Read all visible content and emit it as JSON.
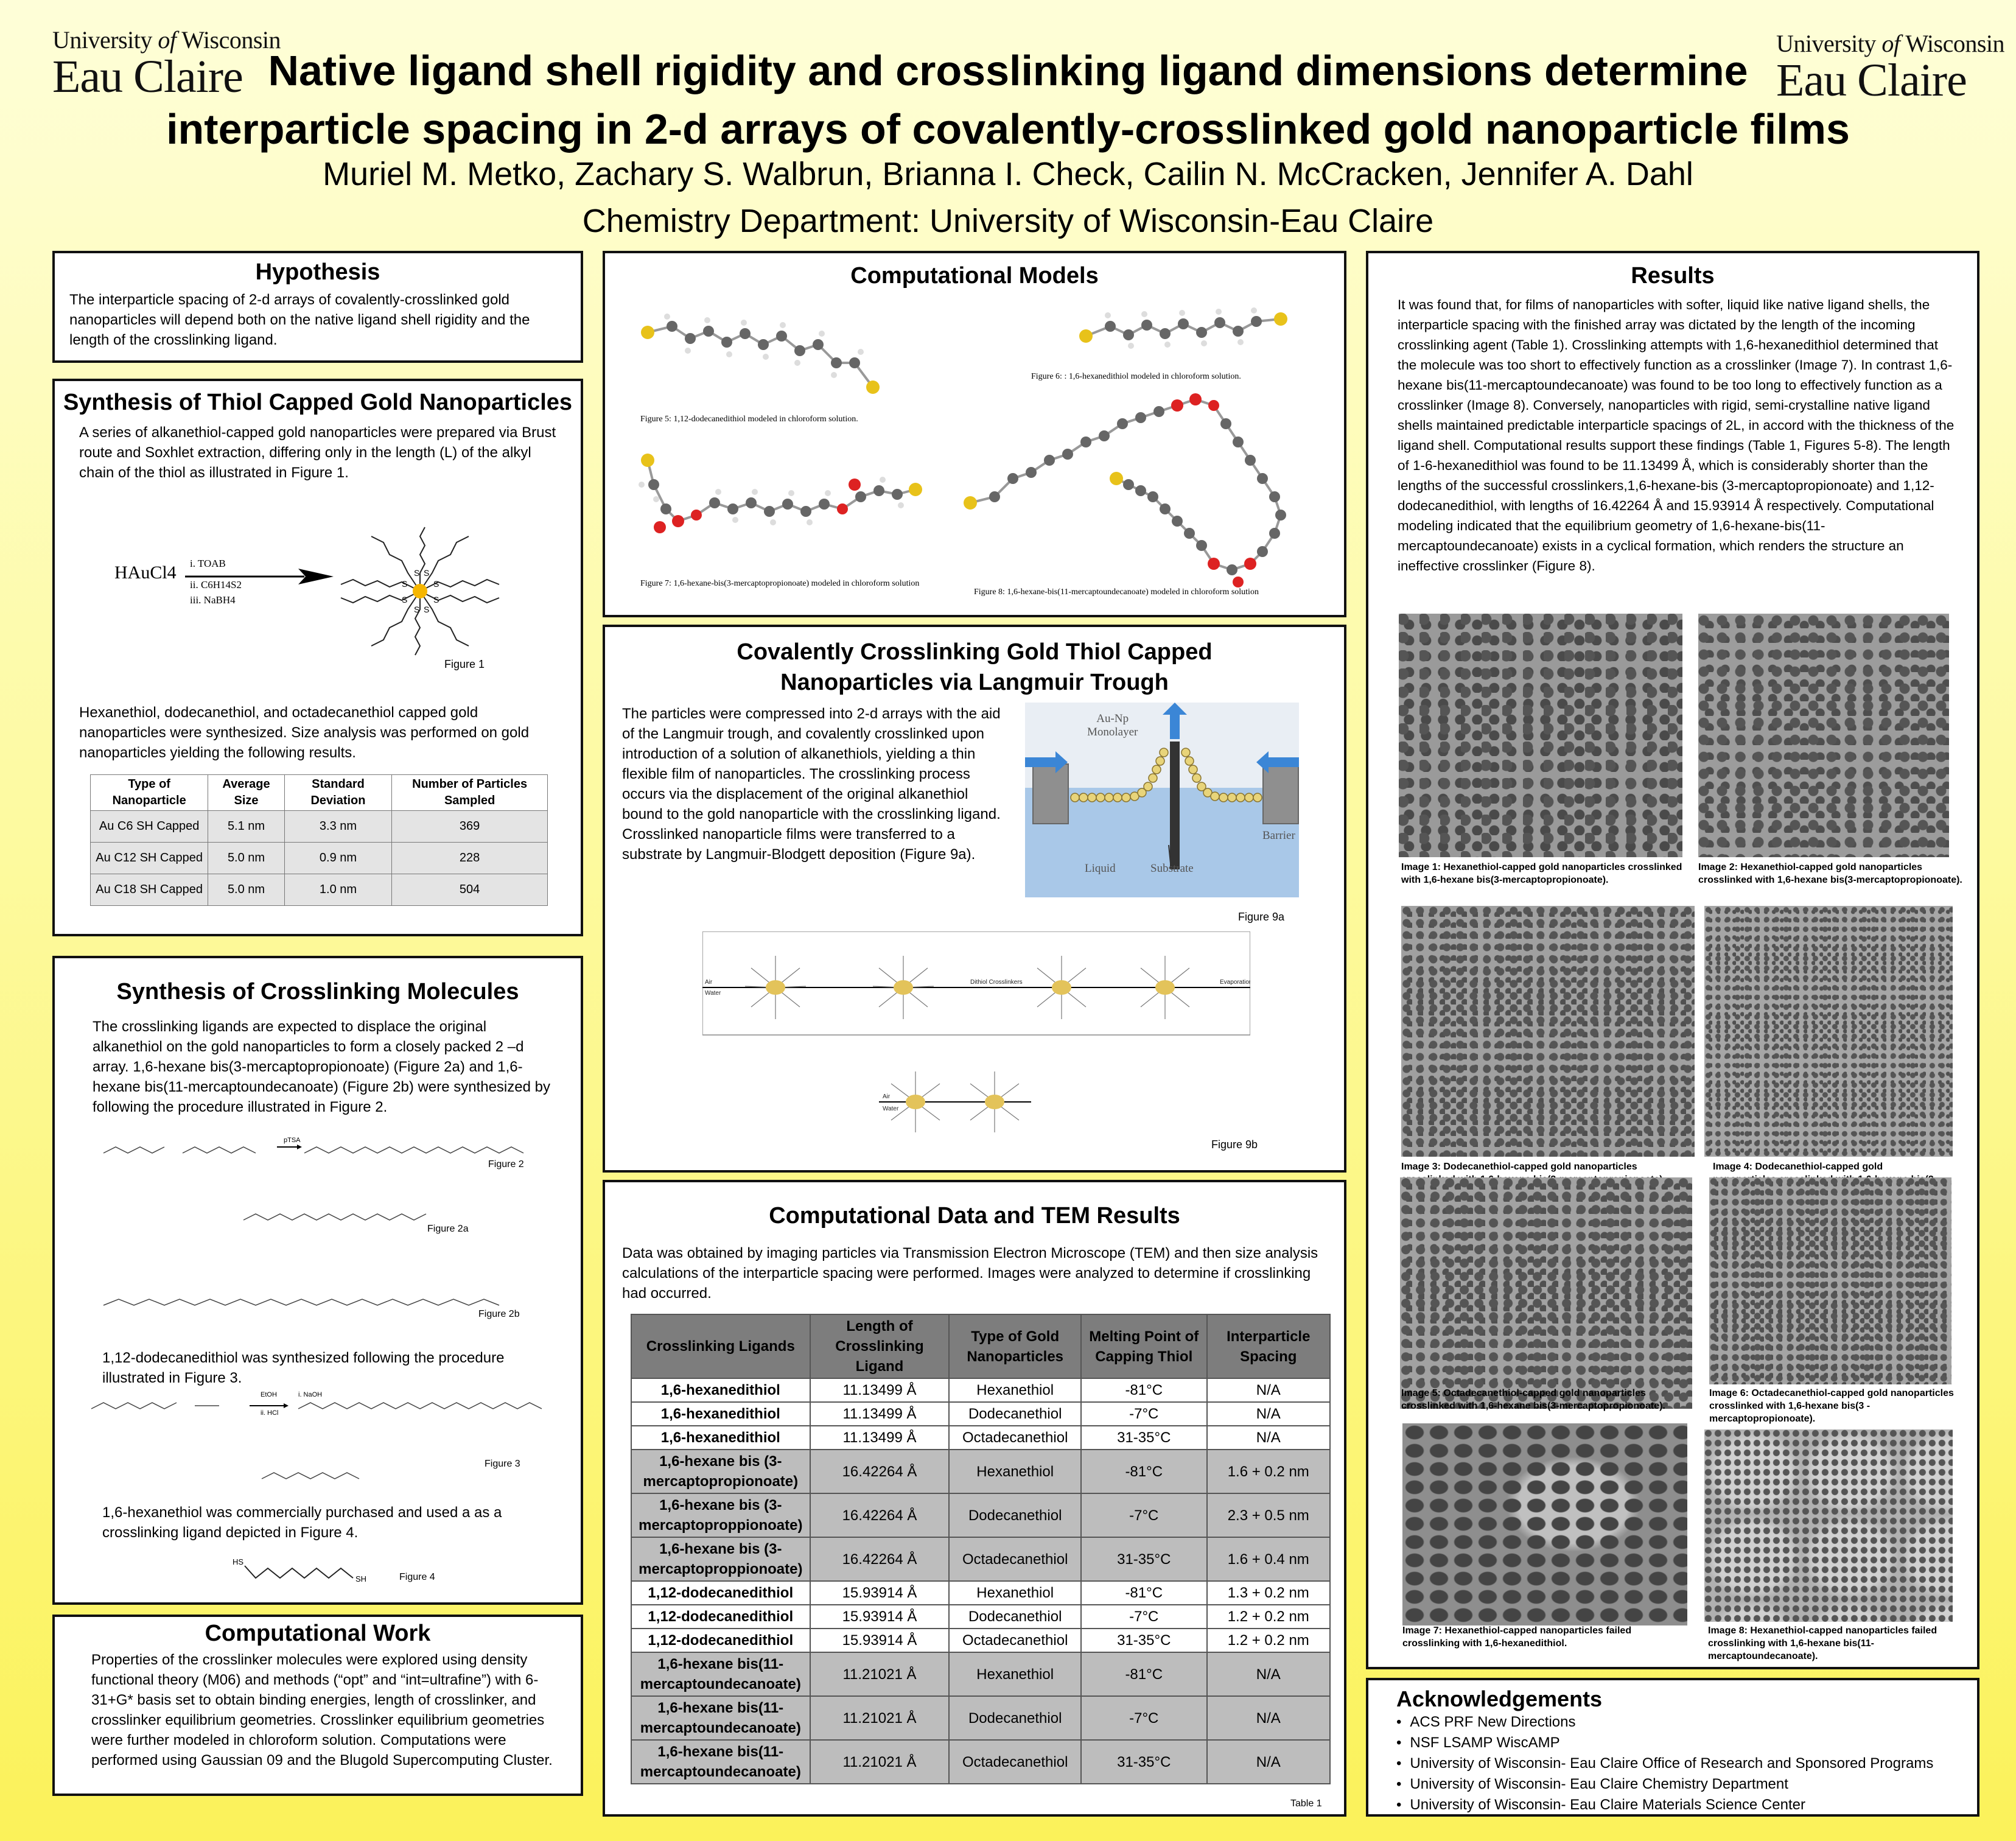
{
  "logo": {
    "line1_pre": "University",
    "line1_of": "of",
    "line1_post": "Wisconsin",
    "line2": "Eau Claire"
  },
  "header": {
    "title_line1": "Native ligand shell rigidity and crosslinking ligand dimensions determine",
    "title_line2": "interparticle spacing in 2-d arrays of covalently-crosslinked gold nanoparticle films",
    "authors": "Muriel M. Metko, Zachary S. Walbrun, Brianna I. Check, Cailin N. McCracken, Jennifer A. Dahl",
    "dept": "Chemistry Department: University of Wisconsin-Eau Claire"
  },
  "hypothesis": {
    "title": "Hypothesis",
    "text": "The interparticle spacing of 2-d arrays of covalently-crosslinked gold nanoparticles will depend both on the native ligand shell rigidity and the length of the crosslinking ligand."
  },
  "synth_thiol": {
    "title": "Synthesis of Thiol Capped Gold Nanoparticles",
    "text1": "A series of alkanethiol-capped gold nanoparticles were prepared via Brust route and Soxhlet extraction, differing only in the length (L) of the alkyl chain of the thiol as illustrated in Figure 1.",
    "reactant": "HAuCl4",
    "cond1": "i. TOAB",
    "cond2": "ii. C6H14S2",
    "cond3": "iii. NaBH4",
    "fig": "Figure 1",
    "text2": "Hexanethiol, dodecanethiol, and octadecanethiol capped gold nanoparticles were synthesized. Size analysis was performed on gold nanoparticles yielding the following results.",
    "headers": [
      "Type of Nanoparticle",
      "Average Size",
      "Standard Deviation",
      "Number of Particles Sampled"
    ],
    "rows": [
      [
        "Au C6 SH Capped",
        "5.1 nm",
        "3.3 nm",
        "369"
      ],
      [
        "Au C12 SH Capped",
        "5.0 nm",
        "0.9 nm",
        "228"
      ],
      [
        "Au C18 SH Capped",
        "5.0 nm",
        "1.0 nm",
        "504"
      ]
    ]
  },
  "synth_cross": {
    "title": "Synthesis of Crosslinking Molecules",
    "text1": "The crosslinking ligands are expected to displace the original alkanethiol on the gold nanoparticles to form a closely packed 2 –d array. 1,6-hexane bis(3-mercaptopropionoate) (Figure 2a) and 1,6-hexane bis(11-mercaptoundecanoate) (Figure 2b) were synthesized by following the procedure illustrated in Figure 2.",
    "fig2": "Figure 2",
    "reagent2": "pTSA",
    "fig2a": "Figure 2a",
    "fig2b": "Figure 2b",
    "text2": "1,12-dodecanedithiol was synthesized following the procedure illustrated in Figure 3.",
    "fig3": "Figure 3",
    "reagent3a": "i. NaOH",
    "reagent3b": "ii. HCl",
    "reagent3c": "EtOH",
    "text3": "1,6-hexanethiol was commercially purchased and used a as a crosslinking ligand depicted in Figure 4.",
    "fig4": "Figure 4",
    "hs": "HS",
    "sh": "SH"
  },
  "comp_work": {
    "title": "Computational Work",
    "text": "Properties of the crosslinker molecules were explored using density functional theory (M06) and methods (“opt” and “int=ultrafine”) with 6-31+G* basis set to obtain binding energies, length of crosslinker, and crosslinker equilibrium geometries. Crosslinker equilibrium geometries were further modeled in chloroform solution. Computations were performed using Gaussian 09 and the Blugold Supercomputing Cluster."
  },
  "comp_models": {
    "title": "Computational Models",
    "fig5": "Figure 5: 1,12-dodecanedithiol modeled in chloroform solution.",
    "fig6": "Figure 6: : 1,6-hexanedithiol modeled in chloroform solution.",
    "fig7": "Figure 7: 1,6-hexane-bis(3-mercaptopropionoate) modeled in chloroform solution",
    "fig8": "Figure 8: 1,6-hexane-bis(11-mercaptoundecanoate) modeled in chloroform solution"
  },
  "langmuir": {
    "title1": "Covalently Crosslinking Gold Thiol Capped",
    "title2": "Nanoparticles via Langmuir Trough",
    "text": "The particles were compressed into 2-d arrays with the aid of the Langmuir trough, and covalently crosslinked upon introduction of a solution of alkanethiols, yielding a thin flexible film of nanoparticles. The crosslinking process occurs via the displacement of the original alkanethiol bound to the gold nanoparticle with the crosslinking ligand. Crosslinked nanoparticle films were transferred to a substrate by Langmuir-Blodgett deposition (Figure 9a).",
    "monolayer1": "Au-Np",
    "monolayer2": "Monolayer",
    "liquid": "Liquid",
    "substrate": "Substrate",
    "barrier": "Barrier",
    "fig9a": "Figure 9a",
    "fig9b": "Figure 9b",
    "air": "Air",
    "water": "Water",
    "dithiol": "Dithiol Crosslinkers",
    "evaporation": "Evaporation"
  },
  "comp_data": {
    "title": "Computational Data and TEM Results",
    "text": "Data was obtained by imaging particles via Transmission Electron Microscope (TEM) and then size analysis calculations of the interparticle spacing were performed. Images were analyzed to determine if crosslinking had occurred.",
    "headers": [
      "Crosslinking Ligands",
      "Length of Crosslinking Ligand",
      "Type of Gold Nanoparticles",
      "Melting Point of Capping Thiol",
      "Interparticle Spacing"
    ],
    "rows": [
      [
        "1,6-hexanedithiol",
        "11.13499 Å",
        "Hexanethiol",
        "-81°C",
        "N/A"
      ],
      [
        "1,6-hexanedithiol",
        "11.13499 Å",
        "Dodecanethiol",
        "-7°C",
        "N/A"
      ],
      [
        "1,6-hexanedithiol",
        "11.13499 Å",
        "Octadecanethiol",
        "31-35°C",
        "N/A"
      ],
      [
        "1,6-hexane bis (3-mercaptopropionoate)",
        "16.42264 Å",
        "Hexanethiol",
        "-81°C",
        "1.6 + 0.2 nm"
      ],
      [
        "1,6-hexane bis (3-mercaptoproppionoate)",
        "16.42264 Å",
        "Dodecanethiol",
        "-7°C",
        "2.3 + 0.5 nm"
      ],
      [
        "1,6-hexane bis (3-mercaptoproppionoate)",
        "16.42264 Å",
        "Octadecanethiol",
        "31-35°C",
        "1.6 + 0.4 nm"
      ],
      [
        "1,12-dodecanedithiol",
        "15.93914 Å",
        "Hexanethiol",
        "-81°C",
        "1.3 + 0.2 nm"
      ],
      [
        "1,12-dodecanedithiol",
        "15.93914 Å",
        "Dodecanethiol",
        "-7°C",
        "1.2 + 0.2 nm"
      ],
      [
        "1,12-dodecanedithiol",
        "15.93914 Å",
        "Octadecanethiol",
        "31-35°C",
        "1.2 + 0.2 nm"
      ],
      [
        "1,6-hexane bis(11-mercaptoundecanoate)",
        "11.21021 Å",
        "Hexanethiol",
        "-81°C",
        "N/A"
      ],
      [
        "1,6-hexane bis(11-mercaptoundecanoate)",
        "11.21021 Å",
        "Dodecanethiol",
        "-7°C",
        "N/A"
      ],
      [
        "1,6-hexane bis(11-mercaptoundecanoate)",
        "11.21021 Å",
        "Octadecanethiol",
        "31-35°C",
        "N/A"
      ]
    ],
    "table_label": "Table 1"
  },
  "results": {
    "title": "Results",
    "text": "It was found that, for films of nanoparticles with softer, liquid like native ligand shells, the interparticle spacing with the finished array was dictated by the length of the incoming crosslinking agent (Table 1). Crosslinking attempts with 1,6-hexanedithiol determined that the molecule was too short to effectively function as a crosslinker (Image 7). In contrast 1,6-hexane bis(11-mercaptoundecanoate) was found to be too long to effectively function as a crosslinker (Image 8). Conversely, nanoparticles with rigid, semi-crystalline native ligand shells maintained predictable interparticle spacings of 2L, in accord with the thickness of the ligand shell. Computational results support these findings (Table 1, Figures 5-8). The length of 1-6-hexanedithiol was found to be 11.13499 Å, which is considerably shorter than the lengths of the successful crosslinkers,1,6-hexane-bis (3-mercaptopropionoate) and 1,12-dodecanedithiol, with lengths of 16.42264 Å and 15.93914 Å respectively. Computational modeling indicated that the equilibrium geometry of 1,6-hexane-bis(11-mercaptoundecanoate) exists in a cyclical formation, which renders the structure an ineffective crosslinker (Figure 8).",
    "img1": "Image 1: Hexanethiol-capped gold nanoparticles crosslinked with 1,6-hexane bis(3-mercaptopropionoate).",
    "img2": "Image 2: Hexanethiol-capped gold nanoparticles crosslinked with 1,6-hexane bis(3-mercaptopropionoate).",
    "img3": "Image 3: Dodecanethiol-capped gold nanoparticles crosslinked with 1,6-hexane bis(3-mercaptopropionoate).",
    "img4": "Image 4: Dodecanethiol-capped gold nanoparticles crosslinked with 1,6-hexane bis(3-mercaptopropionoate).",
    "img5": "Image 5: Octadecanethiol-capped gold nanoparticles crosslinked with 1,6-hexane bis(3-mercaptopropionoate).",
    "img6": "Image 6: Octadecanethiol-capped gold nanoparticles crosslinked with 1,6-hexane bis(3 -mercaptopropionoate).",
    "img7": "Image 7: Hexanethiol-capped nanoparticles failed crosslinking with 1,6-hexanedithiol.",
    "img8": "Image 8: Hexanethiol-capped nanoparticles failed crosslinking with 1,6-hexane bis(11-mercaptoundecanoate)."
  },
  "ack": {
    "title": "Acknowledgements",
    "items": [
      "ACS PRF New Directions",
      "NSF LSAMP WiscAMP",
      "University of Wisconsin- Eau Claire Office of Research and Sponsored Programs",
      "University of Wisconsin- Eau Claire Chemistry Department",
      "University of Wisconsin- Eau Claire Materials Science Center"
    ]
  }
}
